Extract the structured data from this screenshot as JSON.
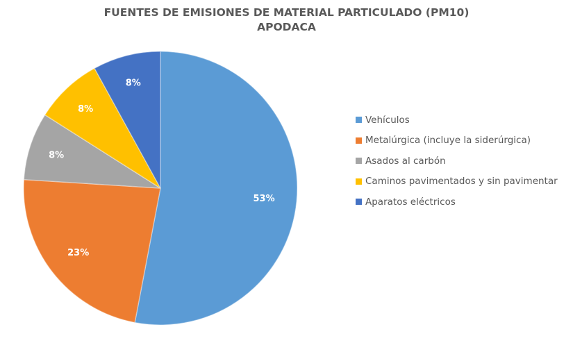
{
  "chart_data": {
    "type": "pie",
    "title": "FUENTES DE EMISIONES DE MATERIAL PARTICULADO (PM10)",
    "subtitle": "APODACA",
    "categories": [
      "Vehículos",
      "Metalúrgica (incluye la siderúrgica)",
      "Asados al carbón",
      "Caminos pavimentados y sin pavimentar",
      "Aparatos eléctricos"
    ],
    "values": [
      53,
      23,
      8,
      8,
      8
    ],
    "labels": [
      "53%",
      "23%",
      "8%",
      "8%",
      "8%"
    ],
    "colors": [
      "#5B9BD5",
      "#ED7D31",
      "#A5A5A5",
      "#FFC000",
      "#4472C4"
    ],
    "legend_position": "right",
    "start_angle_deg": 0,
    "direction": "clockwise"
  },
  "title": {
    "line1": "FUENTES DE EMISIONES DE MATERIAL PARTICULADO (PM10)",
    "line2": "APODACA"
  },
  "legend": {
    "items": [
      {
        "label": "Vehículos",
        "color": "#5B9BD5"
      },
      {
        "label": "Metalúrgica (incluye la siderúrgica)",
        "color": "#ED7D31"
      },
      {
        "label": "Asados al carbón",
        "color": "#A5A5A5"
      },
      {
        "label": "Caminos pavimentados y sin pavimentar",
        "color": "#FFC000"
      },
      {
        "label": "Aparatos eléctricos",
        "color": "#4472C4"
      }
    ]
  }
}
